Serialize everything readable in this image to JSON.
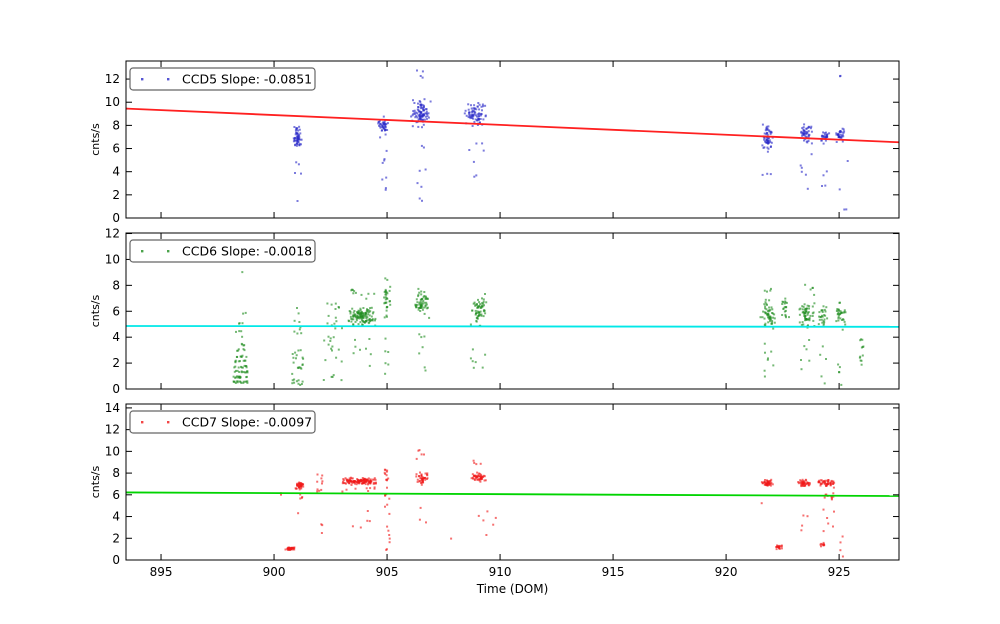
{
  "figure": {
    "background": "#ffffff",
    "xlabel": "Time (DOM)",
    "xlim": [
      893.45,
      927.65
    ],
    "xticks": [
      895,
      900,
      905,
      910,
      915,
      920,
      925
    ],
    "frame_color": "#000000"
  },
  "chart_data": [
    {
      "type": "scatter",
      "series_name": "CCD5",
      "legend_label": "CCD5 Slope: -0.0851",
      "slope": -0.0851,
      "ylabel": "cnts/s",
      "ylim": [
        0,
        13.56
      ],
      "yticks": [
        0,
        2,
        4,
        6,
        8,
        10,
        12
      ],
      "marker_color": "#2a2ac8",
      "trend_color": "#ff2020",
      "trend": {
        "x": [
          893.45,
          927.65
        ],
        "y": [
          9.45,
          6.54
        ]
      },
      "clusters": [
        {
          "x": [
            900.85,
            901.25
          ],
          "y": [
            5.6,
            8.25
          ],
          "n": 55,
          "d": "g"
        },
        {
          "x": [
            900.9,
            901.2
          ],
          "y": [
            3.8,
            5.3
          ],
          "n": 4,
          "d": "u"
        },
        {
          "x": [
            901.0,
            901.1
          ],
          "y": [
            1.4,
            1.6
          ],
          "n": 1,
          "d": "u"
        },
        {
          "x": [
            904.55,
            905.05
          ],
          "y": [
            6.6,
            9.4
          ],
          "n": 42,
          "d": "g"
        },
        {
          "x": [
            904.6,
            905.0
          ],
          "y": [
            3.3,
            6.3
          ],
          "n": 6,
          "d": "u"
        },
        {
          "x": [
            904.85,
            905.0
          ],
          "y": [
            1.5,
            2.6
          ],
          "n": 2,
          "d": "u"
        },
        {
          "x": [
            906.05,
            906.95
          ],
          "y": [
            7.4,
            10.5
          ],
          "n": 90,
          "d": "g"
        },
        {
          "x": [
            906.3,
            906.6
          ],
          "y": [
            11.6,
            12.9
          ],
          "n": 4,
          "d": "u"
        },
        {
          "x": [
            906.2,
            906.8
          ],
          "y": [
            2.5,
            6.8
          ],
          "n": 6,
          "d": "u"
        },
        {
          "x": [
            906.4,
            906.55
          ],
          "y": [
            1.2,
            1.7
          ],
          "n": 2,
          "d": "u"
        },
        {
          "x": [
            908.35,
            909.45
          ],
          "y": [
            7.8,
            10.2
          ],
          "n": 75,
          "d": "g"
        },
        {
          "x": [
            908.5,
            909.3
          ],
          "y": [
            3.0,
            6.6
          ],
          "n": 7,
          "d": "u"
        },
        {
          "x": [
            921.55,
            922.15
          ],
          "y": [
            5.2,
            8.6
          ],
          "n": 55,
          "d": "g"
        },
        {
          "x": [
            921.6,
            922.0
          ],
          "y": [
            3.0,
            4.8
          ],
          "n": 3,
          "d": "u"
        },
        {
          "x": [
            923.25,
            923.85
          ],
          "y": [
            6.2,
            8.5
          ],
          "n": 45,
          "d": "g"
        },
        {
          "x": [
            923.3,
            923.8
          ],
          "y": [
            2.0,
            5.6
          ],
          "n": 6,
          "d": "u"
        },
        {
          "x": [
            924.15,
            924.6
          ],
          "y": [
            6.3,
            7.7
          ],
          "n": 25,
          "d": "g"
        },
        {
          "x": [
            924.2,
            924.5
          ],
          "y": [
            2.5,
            5.0
          ],
          "n": 4,
          "d": "u"
        },
        {
          "x": [
            924.85,
            925.3
          ],
          "y": [
            6.3,
            7.9
          ],
          "n": 32,
          "d": "g"
        },
        {
          "x": [
            924.9,
            925.3
          ],
          "y": [
            12.2,
            12.7
          ],
          "n": 2,
          "d": "u"
        },
        {
          "x": [
            925.0,
            925.4
          ],
          "y": [
            0.3,
            5.5
          ],
          "n": 4,
          "d": "u"
        }
      ]
    },
    {
      "type": "scatter",
      "series_name": "CCD6",
      "legend_label": "CCD6 Slope: -0.0018",
      "slope": -0.0018,
      "ylabel": "cnts/s",
      "ylim": [
        0,
        12.04
      ],
      "yticks": [
        0,
        2,
        4,
        6,
        8,
        10,
        12
      ],
      "marker_color": "#1e8c1e",
      "trend_color": "#00e8e8",
      "trend": {
        "x": [
          893.45,
          927.65
        ],
        "y": [
          4.86,
          4.8
        ]
      },
      "clusters": [
        {
          "x": [
            898.2,
            898.85
          ],
          "y": [
            0.45,
            0.6
          ],
          "n": 16,
          "d": "u"
        },
        {
          "x": [
            898.2,
            898.8
          ],
          "y": [
            0.85,
            1.0
          ],
          "n": 13,
          "d": "u"
        },
        {
          "x": [
            898.25,
            898.85
          ],
          "y": [
            1.25,
            1.4
          ],
          "n": 12,
          "d": "u"
        },
        {
          "x": [
            898.2,
            898.8
          ],
          "y": [
            1.65,
            1.8
          ],
          "n": 10,
          "d": "u"
        },
        {
          "x": [
            898.25,
            898.8
          ],
          "y": [
            2.05,
            2.2
          ],
          "n": 8,
          "d": "u"
        },
        {
          "x": [
            898.3,
            898.8
          ],
          "y": [
            2.45,
            2.6
          ],
          "n": 7,
          "d": "u"
        },
        {
          "x": [
            898.3,
            898.75
          ],
          "y": [
            2.95,
            3.1
          ],
          "n": 5,
          "d": "u"
        },
        {
          "x": [
            898.35,
            898.7
          ],
          "y": [
            3.35,
            3.5
          ],
          "n": 4,
          "d": "u"
        },
        {
          "x": [
            898.3,
            898.75
          ],
          "y": [
            3.9,
            6.2
          ],
          "n": 9,
          "d": "u"
        },
        {
          "x": [
            898.45,
            898.6
          ],
          "y": [
            8.9,
            9.1
          ],
          "n": 1,
          "d": "u"
        },
        {
          "x": [
            900.8,
            901.3
          ],
          "y": [
            0.3,
            3.2
          ],
          "n": 28,
          "d": "u"
        },
        {
          "x": [
            900.9,
            901.25
          ],
          "y": [
            3.5,
            6.3
          ],
          "n": 9,
          "d": "u"
        },
        {
          "x": [
            902.2,
            903.05
          ],
          "y": [
            0.5,
            4.2
          ],
          "n": 18,
          "d": "u"
        },
        {
          "x": [
            902.3,
            903.05
          ],
          "y": [
            4.5,
            6.9
          ],
          "n": 14,
          "d": "u"
        },
        {
          "x": [
            903.2,
            904.6
          ],
          "y": [
            4.6,
            6.7
          ],
          "n": 120,
          "d": "g"
        },
        {
          "x": [
            903.3,
            904.5
          ],
          "y": [
            6.8,
            7.7
          ],
          "n": 10,
          "d": "u"
        },
        {
          "x": [
            903.4,
            904.3
          ],
          "y": [
            1.5,
            4.3
          ],
          "n": 8,
          "d": "u"
        },
        {
          "x": [
            904.8,
            905.15
          ],
          "y": [
            4.6,
            9.3
          ],
          "n": 32,
          "d": "g"
        },
        {
          "x": [
            904.85,
            905.1
          ],
          "y": [
            0.8,
            4.2
          ],
          "n": 6,
          "d": "u"
        },
        {
          "x": [
            906.15,
            906.9
          ],
          "y": [
            5.2,
            8.0
          ],
          "n": 60,
          "d": "g"
        },
        {
          "x": [
            906.3,
            906.8
          ],
          "y": [
            1.0,
            4.6
          ],
          "n": 7,
          "d": "u"
        },
        {
          "x": [
            908.6,
            909.5
          ],
          "y": [
            4.5,
            7.6
          ],
          "n": 60,
          "d": "g"
        },
        {
          "x": [
            908.7,
            909.4
          ],
          "y": [
            1.4,
            4.1
          ],
          "n": 7,
          "d": "u"
        },
        {
          "x": [
            921.5,
            922.2
          ],
          "y": [
            4.4,
            7.1
          ],
          "n": 55,
          "d": "g"
        },
        {
          "x": [
            921.6,
            922.1
          ],
          "y": [
            7.2,
            7.8
          ],
          "n": 4,
          "d": "u"
        },
        {
          "x": [
            921.6,
            922.1
          ],
          "y": [
            0.4,
            3.9
          ],
          "n": 8,
          "d": "u"
        },
        {
          "x": [
            922.45,
            922.8
          ],
          "y": [
            4.5,
            7.7
          ],
          "n": 20,
          "d": "g"
        },
        {
          "x": [
            923.15,
            923.95
          ],
          "y": [
            4.4,
            7.0
          ],
          "n": 60,
          "d": "g"
        },
        {
          "x": [
            923.3,
            923.9
          ],
          "y": [
            7.2,
            8.1
          ],
          "n": 5,
          "d": "u"
        },
        {
          "x": [
            923.3,
            923.85
          ],
          "y": [
            1.5,
            4.1
          ],
          "n": 6,
          "d": "u"
        },
        {
          "x": [
            924.05,
            924.5
          ],
          "y": [
            4.4,
            6.7
          ],
          "n": 26,
          "d": "g"
        },
        {
          "x": [
            924.15,
            924.45
          ],
          "y": [
            0.2,
            3.6
          ],
          "n": 5,
          "d": "u"
        },
        {
          "x": [
            924.8,
            925.35
          ],
          "y": [
            4.4,
            7.0
          ],
          "n": 32,
          "d": "g"
        },
        {
          "x": [
            924.9,
            925.25
          ],
          "y": [
            0.2,
            2.1
          ],
          "n": 5,
          "d": "u"
        },
        {
          "x": [
            925.9,
            926.1
          ],
          "y": [
            1.3,
            4.7
          ],
          "n": 12,
          "d": "u"
        }
      ]
    },
    {
      "type": "scatter",
      "series_name": "CCD7",
      "legend_label": "CCD7 Slope: -0.0097",
      "slope": -0.0097,
      "ylabel": "cnts/s",
      "ylim": [
        0,
        14.36
      ],
      "yticks": [
        0,
        2,
        4,
        6,
        8,
        10,
        12,
        14
      ],
      "marker_color": "#f01818",
      "trend_color": "#00d400",
      "trend": {
        "x": [
          893.45,
          927.65
        ],
        "y": [
          6.22,
          5.89
        ]
      },
      "clusters": [
        {
          "x": [
            900.5,
            900.95
          ],
          "y": [
            0.85,
            1.25
          ],
          "n": 38,
          "d": "g"
        },
        {
          "x": [
            900.25,
            900.4
          ],
          "y": [
            5.9,
            6.2
          ],
          "n": 2,
          "d": "u"
        },
        {
          "x": [
            900.95,
            901.35
          ],
          "y": [
            6.2,
            7.5
          ],
          "n": 38,
          "d": "g"
        },
        {
          "x": [
            901.0,
            901.3
          ],
          "y": [
            5.6,
            6.1
          ],
          "n": 4,
          "d": "u"
        },
        {
          "x": [
            901.05,
            901.2
          ],
          "y": [
            4.3,
            4.6
          ],
          "n": 1,
          "d": "u"
        },
        {
          "x": [
            901.9,
            902.15
          ],
          "y": [
            6.3,
            7.9
          ],
          "n": 10,
          "d": "u"
        },
        {
          "x": [
            901.95,
            902.15
          ],
          "y": [
            2.2,
            5.0
          ],
          "n": 3,
          "d": "u"
        },
        {
          "x": [
            902.95,
            904.6
          ],
          "y": [
            6.8,
            7.7
          ],
          "n": 135,
          "d": "g"
        },
        {
          "x": [
            903.0,
            904.5
          ],
          "y": [
            6.3,
            6.7
          ],
          "n": 8,
          "d": "u"
        },
        {
          "x": [
            903.1,
            904.5
          ],
          "y": [
            2.3,
            5.0
          ],
          "n": 5,
          "d": "u"
        },
        {
          "x": [
            904.88,
            905.12
          ],
          "y": [
            0.4,
            9.8
          ],
          "n": 16,
          "d": "u"
        },
        {
          "x": [
            904.9,
            905.1
          ],
          "y": [
            6.6,
            8.4
          ],
          "n": 10,
          "d": "u"
        },
        {
          "x": [
            906.2,
            906.85
          ],
          "y": [
            6.8,
            8.3
          ],
          "n": 42,
          "d": "g"
        },
        {
          "x": [
            906.3,
            906.7
          ],
          "y": [
            8.7,
            10.4
          ],
          "n": 5,
          "d": "u"
        },
        {
          "x": [
            906.35,
            906.75
          ],
          "y": [
            2.2,
            5.0
          ],
          "n": 3,
          "d": "u"
        },
        {
          "x": [
            907.7,
            907.95
          ],
          "y": [
            1.9,
            2.2
          ],
          "n": 1,
          "d": "u"
        },
        {
          "x": [
            908.7,
            909.4
          ],
          "y": [
            7.0,
            8.1
          ],
          "n": 48,
          "d": "g"
        },
        {
          "x": [
            908.8,
            909.2
          ],
          "y": [
            8.3,
            9.2
          ],
          "n": 4,
          "d": "u"
        },
        {
          "x": [
            908.9,
            909.5
          ],
          "y": [
            1.8,
            5.0
          ],
          "n": 4,
          "d": "u"
        },
        {
          "x": [
            909.6,
            910.0
          ],
          "y": [
            2.5,
            4.8
          ],
          "n": 2,
          "d": "u"
        },
        {
          "x": [
            921.55,
            922.1
          ],
          "y": [
            6.6,
            7.5
          ],
          "n": 42,
          "d": "g"
        },
        {
          "x": [
            921.5,
            921.6
          ],
          "y": [
            5.0,
            5.3
          ],
          "n": 1,
          "d": "u"
        },
        {
          "x": [
            922.15,
            922.5
          ],
          "y": [
            0.85,
            1.5
          ],
          "n": 18,
          "d": "g"
        },
        {
          "x": [
            923.15,
            923.75
          ],
          "y": [
            6.6,
            7.5
          ],
          "n": 42,
          "d": "g"
        },
        {
          "x": [
            923.2,
            923.65
          ],
          "y": [
            2.6,
            4.5
          ],
          "n": 4,
          "d": "u"
        },
        {
          "x": [
            924.0,
            924.85
          ],
          "y": [
            6.5,
            7.7
          ],
          "n": 48,
          "d": "g"
        },
        {
          "x": [
            924.3,
            924.75
          ],
          "y": [
            5.4,
            6.4
          ],
          "n": 10,
          "d": "u"
        },
        {
          "x": [
            924.2,
            924.8
          ],
          "y": [
            2.2,
            5.1
          ],
          "n": 6,
          "d": "u"
        },
        {
          "x": [
            924.15,
            924.45
          ],
          "y": [
            1.1,
            1.7
          ],
          "n": 10,
          "d": "g"
        },
        {
          "x": [
            925.05,
            925.55
          ],
          "y": [
            0.3,
            2.5
          ],
          "n": 4,
          "d": "u"
        }
      ]
    }
  ]
}
